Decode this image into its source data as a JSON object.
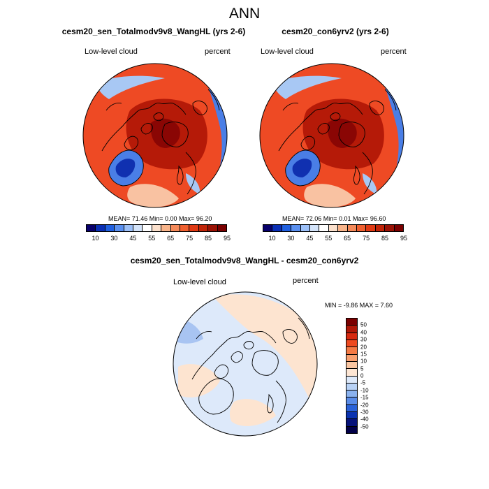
{
  "figure": {
    "title": "ANN"
  },
  "panels": [
    {
      "title": "cesm20_sen_Totalmodv9v8_WangHL (yrs 2-6)",
      "variable": "Low-level cloud",
      "units": "percent",
      "stats": "MEAN=  71.46  Min=   0.00  Max=  96.20"
    },
    {
      "title": "cesm20_con6yrv2 (yrs 2-6)",
      "variable": "Low-level cloud",
      "units": "percent",
      "stats": "MEAN=  72.06  Min=   0.01  Max=  96.60"
    },
    {
      "title": "cesm20_sen_Totalmodv9v8_WangHL - cesm20_con6yrv2",
      "variable": "Low-level cloud",
      "units": "percent",
      "stats": "MIN =  -9.86 MAX =   7.60"
    }
  ],
  "abs_colorbar": {
    "labels": [
      "10",
      "30",
      "45",
      "55",
      "65",
      "75",
      "85",
      "95"
    ],
    "colors": [
      "#08006b",
      "#0a2fb5",
      "#2060e0",
      "#5a90f0",
      "#9cc0f8",
      "#d4e4fa",
      "#ffffff",
      "#fbe0cc",
      "#f8b48a",
      "#f58a5a",
      "#f06030",
      "#e03a14",
      "#c02408",
      "#9a1205",
      "#7a0000"
    ]
  },
  "diff_colorbar": {
    "labels": [
      "50",
      "40",
      "30",
      "20",
      "15",
      "10",
      "5",
      "0",
      "-5",
      "-10",
      "-15",
      "-20",
      "-30",
      "-40",
      "-50"
    ],
    "colors": [
      "#7a0000",
      "#b01808",
      "#d82a10",
      "#ee4a20",
      "#f47a45",
      "#f8a070",
      "#fac6a2",
      "#fde6d4",
      "#dde9fa",
      "#b8d2f6",
      "#8ab2ef",
      "#5a8ce8",
      "#2a62d8",
      "#0a32b0",
      "#06127a",
      "#020048"
    ]
  },
  "map_colors": {
    "abs_base": "#ee4a24",
    "abs_dark": "#b51a08",
    "abs_core": "#8a0604",
    "abs_light": "#f9c2a2",
    "abs_blue": "#4a7ee6",
    "abs_blue_light": "#a8c8f4",
    "abs_blue_dark": "#1030b0",
    "diff_blue": "#dde9fa",
    "diff_orange": "#fde4d0",
    "coast": "#000000"
  }
}
